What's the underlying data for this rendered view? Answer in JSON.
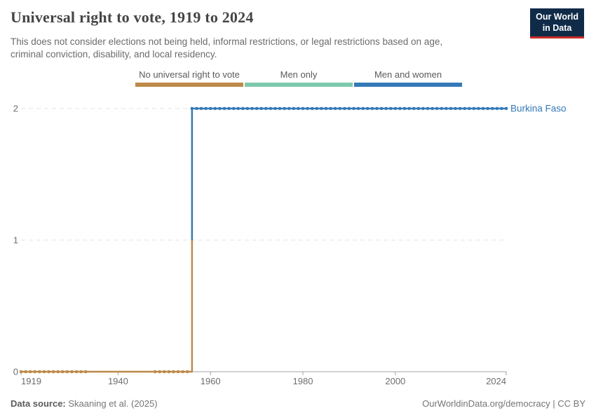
{
  "header": {
    "title": "Universal right to vote, 1919 to 2024",
    "subtitle": "This does not consider elections not being held, informal restrictions, or legal restrictions based on age, criminal conviction, disability, and local residency.",
    "logo_line1": "Our World",
    "logo_line2": "in Data",
    "logo_bg": "#102b48",
    "logo_accent": "#c82d28"
  },
  "legend": {
    "items": [
      {
        "label": "No universal right to vote",
        "color": "#bd8a49"
      },
      {
        "label": "Men only",
        "color": "#7ec9ad"
      },
      {
        "label": "Men and women",
        "color": "#3579b7"
      }
    ]
  },
  "chart_data": {
    "type": "line",
    "title": "Universal right to vote, 1919 to 2024",
    "entity": "Burkina Faso",
    "entity_color": "#3579b7",
    "xlim": [
      1919,
      2024
    ],
    "ylim": [
      0,
      2
    ],
    "x_ticks": [
      1919,
      1940,
      1960,
      1980,
      2000,
      2024
    ],
    "y_ticks": [
      0,
      1,
      2
    ],
    "value_labels": {
      "0": "No universal right to vote",
      "1": "Men only",
      "2": "Men and women"
    },
    "grid": "horizontal dashed",
    "legend_position": "top",
    "transition": {
      "year": 1956,
      "split_value": 1
    },
    "series": [
      {
        "name": "Burkina Faso",
        "segments": [
          {
            "value": 0,
            "from": 1919,
            "to": 1956,
            "category": "No universal right to vote",
            "color": "#bd8a49",
            "marker_ranges": [
              [
                1919,
                1933
              ],
              [
                1948,
                1955
              ]
            ]
          },
          {
            "value": 2,
            "from": 1956,
            "to": 2024,
            "category": "Men and women",
            "color": "#3579b7",
            "marker_ranges": [
              [
                1956,
                2024
              ]
            ]
          }
        ]
      }
    ],
    "axis_color": "#a3a3a3",
    "grid_color": "#e3e3e3",
    "tick_label_color": "#6e6e6e"
  },
  "footer": {
    "source_label": "Data source:",
    "source_value": "Skaaning et al. (2025)",
    "link": "OurWorldinData.org/democracy | CC BY"
  }
}
